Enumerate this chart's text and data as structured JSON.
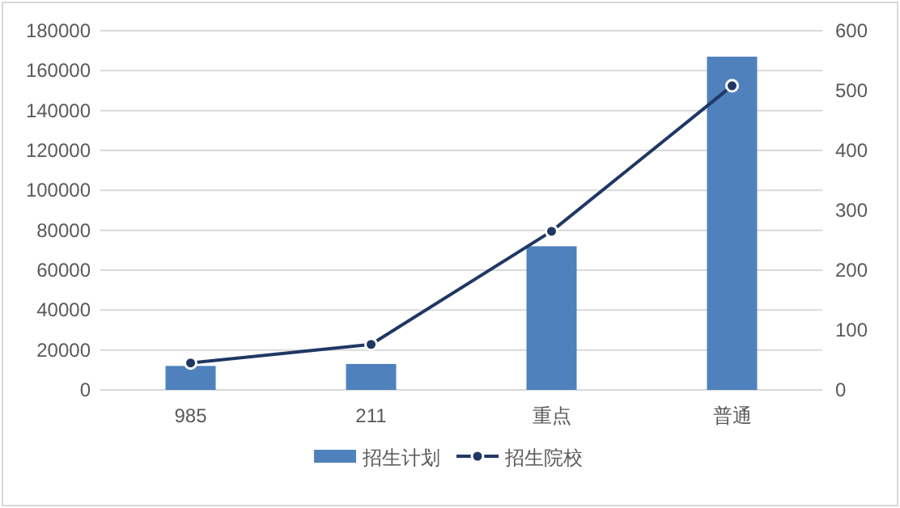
{
  "chart_data": {
    "type": "bar",
    "categories": [
      "985",
      "211",
      "重点",
      "普通"
    ],
    "series": [
      {
        "name": "招生计划",
        "color": "#4f81bd",
        "values": [
          12000,
          13000,
          72000,
          167000
        ]
      },
      {
        "name": "招生院校",
        "type": "line",
        "axis": "y2",
        "color": "#1f3864",
        "marker": "circle",
        "values": [
          45,
          76,
          265,
          508
        ]
      }
    ],
    "ylim": [
      0,
      180000
    ],
    "yticks": [
      0,
      20000,
      40000,
      60000,
      80000,
      100000,
      120000,
      140000,
      160000,
      180000
    ],
    "y2lim": [
      0,
      600
    ],
    "y2ticks": [
      0,
      100,
      200,
      300,
      400,
      500,
      600
    ],
    "grid": "y",
    "legend": "bottom"
  }
}
